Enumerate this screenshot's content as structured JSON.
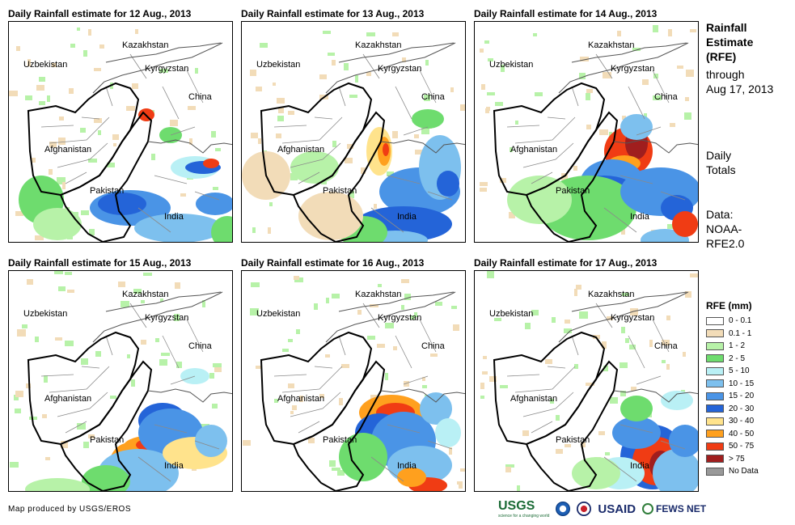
{
  "panels": [
    {
      "title": "Daily Rainfall estimate for 12 Aug., 2013",
      "rain": "d12"
    },
    {
      "title": "Daily Rainfall estimate for 13 Aug., 2013",
      "rain": "d13"
    },
    {
      "title": "Daily Rainfall estimate for 14 Aug., 2013",
      "rain": "d14"
    },
    {
      "title": "Daily Rainfall estimate for 15 Aug., 2013",
      "rain": "d15"
    },
    {
      "title": "Daily Rainfall estimate for 16 Aug., 2013",
      "rain": "d16"
    },
    {
      "title": "Daily Rainfall estimate for 17 Aug., 2013",
      "rain": "d17"
    }
  ],
  "map_labels": {
    "kazakhstan": "Kazakhstan",
    "uzbekistan": "Uzbekistan",
    "kyrgyzstan": "Kyrgyzstan",
    "china": "China",
    "afghanistan": "Afghanistan",
    "pakistan": "Pakistan",
    "india": "India"
  },
  "side": {
    "title_line1": "Rainfall",
    "title_line2": "Estimate",
    "title_line3": "(RFE)",
    "through": "through",
    "date": "Aug 17, 2013",
    "daily1": "Daily",
    "daily2": "Totals",
    "data1": "Data:",
    "data2": "NOAA-",
    "data3": "RFE2.0"
  },
  "legend": {
    "title": "RFE (mm)",
    "items": [
      {
        "label": "0 - 0.1",
        "color": "#ffffff"
      },
      {
        "label": "0.1 - 1",
        "color": "#f2dcb8"
      },
      {
        "label": "1 - 2",
        "color": "#b7f2a8"
      },
      {
        "label": "2 - 5",
        "color": "#6edc6e"
      },
      {
        "label": "5 - 10",
        "color": "#b9f0f5"
      },
      {
        "label": "10 - 15",
        "color": "#7dc0ee"
      },
      {
        "label": "15 - 20",
        "color": "#4a94e6"
      },
      {
        "label": "20 - 30",
        "color": "#2464d8"
      },
      {
        "label": "30 - 40",
        "color": "#ffe38c"
      },
      {
        "label": "40 - 50",
        "color": "#ffa01e"
      },
      {
        "label": "50 - 75",
        "color": "#f03c14"
      },
      {
        "label": "> 75",
        "color": "#a01e1e"
      },
      {
        "label": "No Data",
        "color": "#999999"
      }
    ]
  },
  "credit": "Map produced by USGS/EROS",
  "logos": {
    "usgs": "USGS",
    "usgs_tagline": "science for a changing world",
    "usaid": "USAID",
    "fews": "FEWS NET"
  }
}
